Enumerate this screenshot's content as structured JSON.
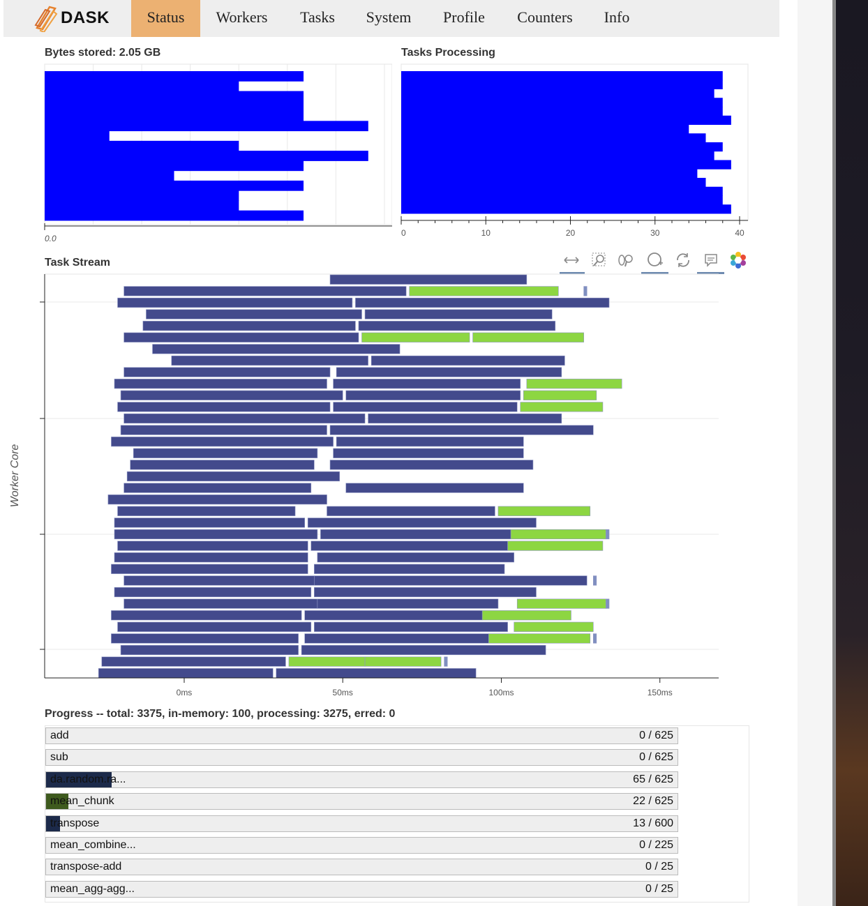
{
  "navbar": {
    "logo_text": "DASK",
    "tabs": [
      {
        "label": "Status",
        "active": true
      },
      {
        "label": "Workers",
        "active": false
      },
      {
        "label": "Tasks",
        "active": false
      },
      {
        "label": "System",
        "active": false
      },
      {
        "label": "Profile",
        "active": false
      },
      {
        "label": "Counters",
        "active": false
      },
      {
        "label": "Info",
        "active": false
      }
    ]
  },
  "bytes_panel": {
    "title": "Bytes stored: 2.05 GB",
    "tick_label": "0.0"
  },
  "tasks_panel": {
    "title": "Tasks Processing"
  },
  "stream_panel": {
    "title": "Task Stream",
    "ylabel": "Worker Core",
    "toolbar_icons": [
      "pan-icon",
      "box-zoom-icon",
      "wheel-zoom-icon",
      "zoom-in-icon",
      "reset-icon",
      "hover-icon",
      "bokeh-logo-icon"
    ]
  },
  "progress": {
    "title": "Progress -- total: 3375, in-memory: 100, processing: 3275, erred: 0",
    "rows": [
      {
        "name": "add",
        "done": 0,
        "total": 625,
        "label": "0 / 625",
        "color": "#eeeeee"
      },
      {
        "name": "sub",
        "done": 0,
        "total": 625,
        "label": "0 / 625",
        "color": "#eeeeee"
      },
      {
        "name": "da.random.ra...",
        "done": 65,
        "total": 625,
        "label": "65 / 625",
        "color": "#1c2a4a"
      },
      {
        "name": "mean_chunk",
        "done": 22,
        "total": 625,
        "label": "22 / 625",
        "color": "#3e5a1e"
      },
      {
        "name": "transpose",
        "done": 13,
        "total": 600,
        "label": "13 / 600",
        "color": "#1c2a4a"
      },
      {
        "name": "mean_combine...",
        "done": 0,
        "total": 225,
        "label": "0 / 225",
        "color": "#eeeeee"
      },
      {
        "name": "transpose-add",
        "done": 0,
        "total": 25,
        "label": "0 / 25",
        "color": "#eeeeee"
      },
      {
        "name": "mean_agg-agg...",
        "done": 0,
        "total": 25,
        "label": "0 / 25",
        "color": "#eeeeee"
      }
    ]
  },
  "chart_data": [
    {
      "type": "bar",
      "orientation": "horizontal",
      "title": "Bytes stored: 2.05 GB",
      "bar_color": "#0000ff",
      "tick_labels": [
        "0.0"
      ],
      "values": [
        0.8,
        0.6,
        0.8,
        0.8,
        0.8,
        1.0,
        0.2,
        0.6,
        1.0,
        0.8,
        0.4,
        0.8,
        0.6,
        0.6,
        0.8
      ],
      "xlim": [
        0,
        1.16
      ]
    },
    {
      "type": "bar",
      "orientation": "horizontal",
      "title": "Tasks Processing",
      "bar_color": "#0000ff",
      "ticks": [
        0,
        10,
        20,
        30,
        40
      ],
      "tick_labels": [
        "0",
        "10",
        "20",
        "30",
        "40"
      ],
      "xlim": [
        0,
        41
      ],
      "values": [
        38,
        38,
        37,
        38,
        38,
        39,
        34,
        36,
        38,
        37,
        39,
        35,
        36,
        38,
        38,
        39
      ]
    },
    {
      "type": "bar",
      "subtype": "gantt",
      "title": "Task Stream",
      "ylabel": "Worker Core",
      "x_tick_labels": [
        "0ms",
        "50ms",
        "100ms",
        "150ms"
      ],
      "x_ticks": [
        0,
        50,
        100,
        150
      ],
      "xlim": [
        -44,
        178
      ],
      "colors": {
        "task": "#434a8c",
        "mean_chunk": "#8dd642",
        "transfer": "#7f8fc0"
      },
      "rows": [
        [
          [
            46,
            108,
            "task"
          ]
        ],
        [
          [
            -19,
            70,
            "task"
          ],
          [
            71,
            118,
            "mean_chunk"
          ],
          [
            126,
            127,
            "transfer"
          ]
        ],
        [
          [
            -21,
            53,
            "task"
          ],
          [
            54,
            134,
            "task"
          ]
        ],
        [
          [
            -12,
            56,
            "task"
          ],
          [
            57,
            116,
            "task"
          ]
        ],
        [
          [
            -13,
            54,
            "task"
          ],
          [
            55,
            117,
            "task"
          ]
        ],
        [
          [
            -19,
            55,
            "task"
          ],
          [
            56,
            90,
            "mean_chunk"
          ],
          [
            91,
            126,
            "mean_chunk"
          ]
        ],
        [
          [
            -10,
            68,
            "task"
          ]
        ],
        [
          [
            -4,
            58,
            "task"
          ],
          [
            59,
            120,
            "task"
          ]
        ],
        [
          [
            -19,
            46,
            "task"
          ],
          [
            48,
            119,
            "task"
          ]
        ],
        [
          [
            -22,
            45,
            "task"
          ],
          [
            47,
            106,
            "task"
          ],
          [
            108,
            138,
            "mean_chunk"
          ]
        ],
        [
          [
            -20,
            50,
            "task"
          ],
          [
            51,
            106,
            "task"
          ],
          [
            107,
            130,
            "mean_chunk"
          ]
        ],
        [
          [
            -21,
            46,
            "task"
          ],
          [
            47,
            105,
            "task"
          ],
          [
            106,
            132,
            "mean_chunk"
          ]
        ],
        [
          [
            -19,
            57,
            "task"
          ],
          [
            58,
            119,
            "task"
          ]
        ],
        [
          [
            -20,
            45,
            "task"
          ],
          [
            46,
            129,
            "task"
          ]
        ],
        [
          [
            -23,
            47,
            "task"
          ],
          [
            48,
            107,
            "task"
          ]
        ],
        [
          [
            -16,
            42,
            "task"
          ],
          [
            47,
            107,
            "task"
          ]
        ],
        [
          [
            -17,
            41,
            "task"
          ],
          [
            46,
            110,
            "task"
          ]
        ],
        [
          [
            -18,
            49,
            "task"
          ]
        ],
        [
          [
            -19,
            40,
            "task"
          ],
          [
            51,
            107,
            "task"
          ]
        ],
        [
          [
            -24,
            45,
            "task"
          ]
        ],
        [
          [
            -21,
            35,
            "task"
          ],
          [
            45,
            98,
            "task"
          ],
          [
            99,
            128,
            "mean_chunk"
          ]
        ],
        [
          [
            -22,
            38,
            "task"
          ],
          [
            39,
            111,
            "task"
          ]
        ],
        [
          [
            -22,
            42,
            "task"
          ],
          [
            43,
            103,
            "task"
          ],
          [
            103,
            133,
            "mean_chunk"
          ],
          [
            133,
            134,
            "transfer"
          ]
        ],
        [
          [
            -21,
            39,
            "task"
          ],
          [
            40,
            102,
            "task"
          ],
          [
            102,
            132,
            "mean_chunk"
          ]
        ],
        [
          [
            -22,
            39,
            "task"
          ],
          [
            42,
            104,
            "task"
          ]
        ],
        [
          [
            -23,
            39,
            "task"
          ],
          [
            41,
            101,
            "task"
          ]
        ],
        [
          [
            -19,
            41,
            "task"
          ],
          [
            41,
            127,
            "task"
          ],
          [
            129,
            130,
            "transfer"
          ]
        ],
        [
          [
            -22,
            40,
            "task"
          ],
          [
            41,
            111,
            "task"
          ]
        ],
        [
          [
            -19,
            42,
            "task"
          ],
          [
            42,
            99,
            "task"
          ],
          [
            105,
            133,
            "mean_chunk"
          ],
          [
            133,
            134,
            "transfer"
          ]
        ],
        [
          [
            -23,
            37,
            "task"
          ],
          [
            38,
            94,
            "task"
          ],
          [
            94,
            122,
            "mean_chunk"
          ]
        ],
        [
          [
            -21,
            40,
            "task"
          ],
          [
            41,
            102,
            "task"
          ],
          [
            104,
            129,
            "mean_chunk"
          ]
        ],
        [
          [
            -23,
            36,
            "task"
          ],
          [
            38,
            96,
            "task"
          ],
          [
            96,
            128,
            "mean_chunk"
          ],
          [
            129,
            130,
            "transfer"
          ]
        ],
        [
          [
            -20,
            36,
            "task"
          ],
          [
            37,
            114,
            "task"
          ]
        ],
        [
          [
            -26,
            32,
            "task"
          ],
          [
            33,
            57,
            "mean_chunk"
          ],
          [
            57,
            81,
            "mean_chunk"
          ],
          [
            82,
            83,
            "transfer"
          ]
        ],
        [
          [
            -27,
            28,
            "task"
          ],
          [
            29,
            92,
            "task"
          ]
        ]
      ]
    }
  ]
}
